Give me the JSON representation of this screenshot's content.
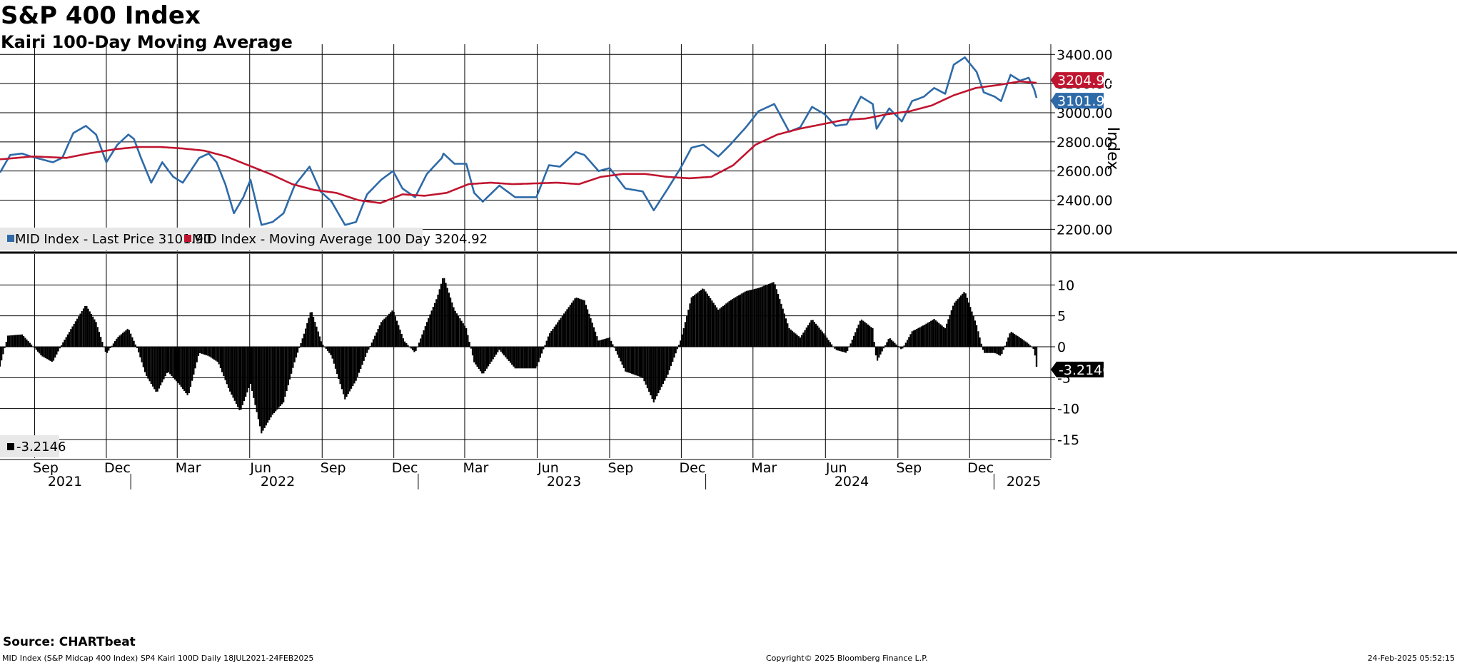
{
  "title": "S&P 400 Index",
  "subtitle": "Kairi 100-Day Moving Average",
  "source": "Source: CHARTbeat",
  "footer": {
    "left": "MID Index (S&P Midcap 400 Index) SP4 Kairi 100D  Daily 18JUL2021-24FEB2025",
    "center": "Copyright© 2025 Bloomberg Finance L.P.",
    "right": "24-Feb-2025 05:52:15"
  },
  "colors": {
    "price": "#2e6aa8",
    "ma": "#c0152f",
    "kairi": "#000000",
    "grid": "#000000",
    "legend_bg": "#e8e8e8"
  },
  "chart_data": [
    {
      "type": "line",
      "ylabel": "Index",
      "ylim": [
        2050,
        3470
      ],
      "yticks": [
        "3400.00",
        "3200.00",
        "3000.00",
        "2800.00",
        "2600.00",
        "2400.00",
        "2200.00"
      ],
      "x_month_labels": [
        "Sep",
        "Dec",
        "Mar",
        "Jun",
        "Sep",
        "Dec",
        "Mar",
        "Jun",
        "Sep",
        "Dec",
        "Mar",
        "Jun",
        "Sep",
        "Dec"
      ],
      "x_year_labels": [
        "2021",
        "2022",
        "2023",
        "2024",
        "2025"
      ],
      "last_value_labels": [
        "3204.92",
        "3101.90"
      ],
      "legend": [
        "MID Index - Last Price 3101.90",
        "MID Index - Moving Average 100 Day 3204.92"
      ],
      "series": [
        {
          "name": "MID Index - Last Price",
          "color": "#2e6aa8",
          "points": [
            [
              "2021-07-19",
              2590
            ],
            [
              "2021-08-01",
              2710
            ],
            [
              "2021-08-16",
              2720
            ],
            [
              "2021-08-27",
              2700
            ],
            [
              "2021-09-10",
              2680
            ],
            [
              "2021-09-24",
              2660
            ],
            [
              "2021-10-06",
              2690
            ],
            [
              "2021-10-20",
              2860
            ],
            [
              "2021-11-05",
              2910
            ],
            [
              "2021-11-18",
              2850
            ],
            [
              "2021-12-01",
              2660
            ],
            [
              "2021-12-15",
              2780
            ],
            [
              "2021-12-29",
              2850
            ],
            [
              "2022-01-05",
              2820
            ],
            [
              "2022-01-14",
              2690
            ],
            [
              "2022-01-27",
              2520
            ],
            [
              "2022-02-10",
              2660
            ],
            [
              "2022-02-24",
              2560
            ],
            [
              "2022-03-08",
              2520
            ],
            [
              "2022-03-29",
              2690
            ],
            [
              "2022-04-10",
              2720
            ],
            [
              "2022-04-20",
              2660
            ],
            [
              "2022-05-01",
              2510
            ],
            [
              "2022-05-12",
              2310
            ],
            [
              "2022-05-24",
              2420
            ],
            [
              "2022-06-02",
              2540
            ],
            [
              "2022-06-16",
              2230
            ],
            [
              "2022-06-30",
              2250
            ],
            [
              "2022-07-14",
              2310
            ],
            [
              "2022-07-28",
              2500
            ],
            [
              "2022-08-16",
              2630
            ],
            [
              "2022-08-30",
              2460
            ],
            [
              "2022-09-13",
              2390
            ],
            [
              "2022-09-30",
              2230
            ],
            [
              "2022-10-14",
              2250
            ],
            [
              "2022-10-28",
              2440
            ],
            [
              "2022-11-15",
              2540
            ],
            [
              "2022-11-30",
              2600
            ],
            [
              "2022-12-12",
              2480
            ],
            [
              "2022-12-28",
              2420
            ],
            [
              "2023-01-12",
              2580
            ],
            [
              "2023-01-31",
              2690
            ],
            [
              "2023-02-02",
              2720
            ],
            [
              "2023-02-16",
              2650
            ],
            [
              "2023-03-03",
              2650
            ],
            [
              "2023-03-13",
              2450
            ],
            [
              "2023-03-24",
              2390
            ],
            [
              "2023-04-14",
              2500
            ],
            [
              "2023-05-04",
              2420
            ],
            [
              "2023-05-31",
              2420
            ],
            [
              "2023-06-16",
              2640
            ],
            [
              "2023-06-30",
              2630
            ],
            [
              "2023-07-20",
              2730
            ],
            [
              "2023-07-31",
              2710
            ],
            [
              "2023-08-18",
              2600
            ],
            [
              "2023-09-01",
              2620
            ],
            [
              "2023-09-21",
              2480
            ],
            [
              "2023-10-13",
              2460
            ],
            [
              "2023-10-27",
              2330
            ],
            [
              "2023-11-14",
              2480
            ],
            [
              "2023-11-30",
              2620
            ],
            [
              "2023-12-14",
              2760
            ],
            [
              "2023-12-29",
              2780
            ],
            [
              "2024-01-17",
              2700
            ],
            [
              "2024-02-01",
              2780
            ],
            [
              "2024-02-21",
              2900
            ],
            [
              "2024-03-08",
              3010
            ],
            [
              "2024-03-28",
              3060
            ],
            [
              "2024-04-16",
              2870
            ],
            [
              "2024-04-30",
              2900
            ],
            [
              "2024-05-15",
              3040
            ],
            [
              "2024-05-31",
              2990
            ],
            [
              "2024-06-14",
              2910
            ],
            [
              "2024-06-28",
              2920
            ],
            [
              "2024-07-16",
              3110
            ],
            [
              "2024-07-31",
              3060
            ],
            [
              "2024-08-05",
              2890
            ],
            [
              "2024-08-21",
              3030
            ],
            [
              "2024-09-06",
              2940
            ],
            [
              "2024-09-19",
              3080
            ],
            [
              "2024-10-04",
              3110
            ],
            [
              "2024-10-17",
              3170
            ],
            [
              "2024-10-31",
              3130
            ],
            [
              "2024-11-11",
              3330
            ],
            [
              "2024-11-25",
              3380
            ],
            [
              "2024-12-10",
              3280
            ],
            [
              "2024-12-19",
              3140
            ],
            [
              "2025-01-02",
              3110
            ],
            [
              "2025-01-10",
              3080
            ],
            [
              "2025-01-22",
              3260
            ],
            [
              "2025-02-03",
              3220
            ],
            [
              "2025-02-14",
              3240
            ],
            [
              "2025-02-21",
              3160
            ],
            [
              "2025-02-24",
              3101.9
            ]
          ]
        },
        {
          "name": "MID Index - Moving Average 100 Day",
          "color": "#c0152f",
          "points": [
            [
              "2021-07-19",
              2680
            ],
            [
              "2021-08-30",
              2700
            ],
            [
              "2021-10-11",
              2690
            ],
            [
              "2021-11-08",
              2720
            ],
            [
              "2021-12-13",
              2750
            ],
            [
              "2022-01-10",
              2765
            ],
            [
              "2022-02-07",
              2765
            ],
            [
              "2022-03-07",
              2755
            ],
            [
              "2022-04-04",
              2740
            ],
            [
              "2022-05-02",
              2700
            ],
            [
              "2022-05-30",
              2640
            ],
            [
              "2022-06-27",
              2580
            ],
            [
              "2022-07-25",
              2510
            ],
            [
              "2022-08-22",
              2470
            ],
            [
              "2022-09-19",
              2450
            ],
            [
              "2022-10-17",
              2400
            ],
            [
              "2022-11-14",
              2380
            ],
            [
              "2022-12-12",
              2440
            ],
            [
              "2023-01-09",
              2430
            ],
            [
              "2023-02-06",
              2450
            ],
            [
              "2023-03-06",
              2510
            ],
            [
              "2023-04-03",
              2520
            ],
            [
              "2023-05-01",
              2510
            ],
            [
              "2023-05-29",
              2515
            ],
            [
              "2023-06-26",
              2520
            ],
            [
              "2023-07-24",
              2510
            ],
            [
              "2023-08-21",
              2560
            ],
            [
              "2023-09-18",
              2580
            ],
            [
              "2023-10-16",
              2580
            ],
            [
              "2023-11-13",
              2560
            ],
            [
              "2023-12-11",
              2550
            ],
            [
              "2024-01-08",
              2560
            ],
            [
              "2024-02-05",
              2640
            ],
            [
              "2024-03-04",
              2780
            ],
            [
              "2024-04-01",
              2850
            ],
            [
              "2024-04-29",
              2890
            ],
            [
              "2024-05-27",
              2920
            ],
            [
              "2024-06-24",
              2950
            ],
            [
              "2024-07-22",
              2960
            ],
            [
              "2024-08-19",
              2990
            ],
            [
              "2024-09-16",
              3010
            ],
            [
              "2024-10-14",
              3050
            ],
            [
              "2024-11-11",
              3120
            ],
            [
              "2024-12-09",
              3170
            ],
            [
              "2025-01-06",
              3190
            ],
            [
              "2025-02-03",
              3215
            ],
            [
              "2025-02-24",
              3204.92
            ]
          ]
        }
      ]
    },
    {
      "type": "bar",
      "ylim": [
        -18,
        15
      ],
      "yticks": [
        "10",
        "5",
        "0",
        "-5",
        "-10",
        "-15"
      ],
      "last_value_label": "-3.2146",
      "legend": [
        "-3.2146"
      ],
      "series": [
        {
          "name": "Kairi 100-Day Moving Average",
          "color": "#000000",
          "points": [
            [
              "2021-07-19",
              -3.2
            ],
            [
              "2021-07-29",
              1.8
            ],
            [
              "2021-08-16",
              2
            ],
            [
              "2021-08-27",
              0.5
            ],
            [
              "2021-09-10",
              -1.5
            ],
            [
              "2021-09-24",
              -2.5
            ],
            [
              "2021-10-06",
              0.5
            ],
            [
              "2021-10-20",
              3.5
            ],
            [
              "2021-11-05",
              6.8
            ],
            [
              "2021-11-18",
              4
            ],
            [
              "2021-12-01",
              -1.2
            ],
            [
              "2021-12-15",
              1.5
            ],
            [
              "2021-12-29",
              3
            ],
            [
              "2022-01-10",
              -0.5
            ],
            [
              "2022-01-20",
              -4.5
            ],
            [
              "2022-02-03",
              -7.5
            ],
            [
              "2022-02-17",
              -4
            ],
            [
              "2022-03-03",
              -6
            ],
            [
              "2022-03-15",
              -8
            ],
            [
              "2022-03-29",
              -1
            ],
            [
              "2022-04-10",
              -1.5
            ],
            [
              "2022-04-22",
              -2.5
            ],
            [
              "2022-05-06",
              -7
            ],
            [
              "2022-05-20",
              -10.5
            ],
            [
              "2022-06-02",
              -6
            ],
            [
              "2022-06-16",
              -14
            ],
            [
              "2022-06-30",
              -11
            ],
            [
              "2022-07-14",
              -9
            ],
            [
              "2022-07-28",
              -2.5
            ],
            [
              "2022-08-10",
              2.5
            ],
            [
              "2022-08-18",
              6
            ],
            [
              "2022-09-01",
              0.5
            ],
            [
              "2022-09-13",
              -1.5
            ],
            [
              "2022-09-30",
              -8.5
            ],
            [
              "2022-10-14",
              -5.5
            ],
            [
              "2022-10-28",
              -1
            ],
            [
              "2022-11-15",
              4
            ],
            [
              "2022-11-30",
              6
            ],
            [
              "2022-12-14",
              1
            ],
            [
              "2022-12-28",
              -1
            ],
            [
              "2023-01-12",
              4
            ],
            [
              "2023-01-25",
              8
            ],
            [
              "2023-02-02",
              11.5
            ],
            [
              "2023-02-16",
              6
            ],
            [
              "2023-03-03",
              3
            ],
            [
              "2023-03-13",
              -2.5
            ],
            [
              "2023-03-24",
              -4.5
            ],
            [
              "2023-04-14",
              -0.5
            ],
            [
              "2023-05-04",
              -3.5
            ],
            [
              "2023-05-31",
              -3.5
            ],
            [
              "2023-06-16",
              2
            ],
            [
              "2023-06-30",
              4.5
            ],
            [
              "2023-07-20",
              8
            ],
            [
              "2023-07-31",
              7.5
            ],
            [
              "2023-08-18",
              1
            ],
            [
              "2023-09-01",
              1.5
            ],
            [
              "2023-09-21",
              -4
            ],
            [
              "2023-10-13",
              -5
            ],
            [
              "2023-10-27",
              -9
            ],
            [
              "2023-11-14",
              -4.5
            ],
            [
              "2023-11-30",
              1
            ],
            [
              "2023-12-14",
              8
            ],
            [
              "2023-12-29",
              9.5
            ],
            [
              "2024-01-17",
              6
            ],
            [
              "2024-02-01",
              7.5
            ],
            [
              "2024-02-21",
              9
            ],
            [
              "2024-03-08",
              9.5
            ],
            [
              "2024-03-28",
              10.5
            ],
            [
              "2024-04-16",
              3
            ],
            [
              "2024-04-30",
              1.5
            ],
            [
              "2024-05-15",
              4.5
            ],
            [
              "2024-05-31",
              2
            ],
            [
              "2024-06-14",
              -0.5
            ],
            [
              "2024-06-28",
              -1
            ],
            [
              "2024-07-16",
              4.5
            ],
            [
              "2024-07-31",
              3
            ],
            [
              "2024-08-05",
              -2.5
            ],
            [
              "2024-08-21",
              1.5
            ],
            [
              "2024-09-06",
              -0.5
            ],
            [
              "2024-09-19",
              2.5
            ],
            [
              "2024-10-04",
              3.5
            ],
            [
              "2024-10-17",
              4.5
            ],
            [
              "2024-10-31",
              3
            ],
            [
              "2024-11-11",
              7
            ],
            [
              "2024-11-25",
              9
            ],
            [
              "2024-12-10",
              3.5
            ],
            [
              "2024-12-19",
              -1
            ],
            [
              "2025-01-02",
              -1
            ],
            [
              "2025-01-10",
              -1.5
            ],
            [
              "2025-01-22",
              2.5
            ],
            [
              "2025-02-03",
              1.5
            ],
            [
              "2025-02-14",
              0.5
            ],
            [
              "2025-02-21",
              -0.5
            ],
            [
              "2025-02-24",
              -3.2146
            ]
          ]
        }
      ]
    }
  ]
}
